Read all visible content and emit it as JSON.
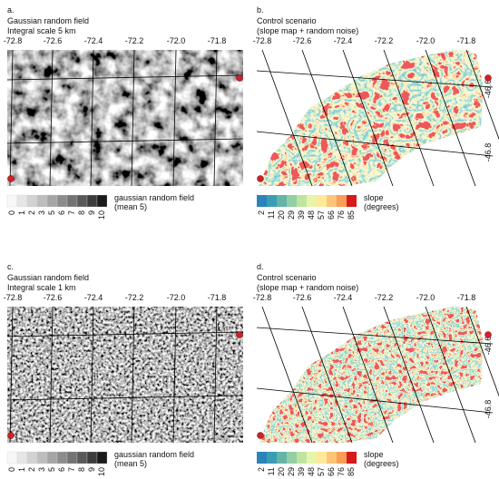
{
  "panels": [
    {
      "label": "a.",
      "title": [
        "Gaussian random field",
        "Integral scale 5 km"
      ],
      "kind": "gray",
      "scale": "coarse",
      "lon_ticks": [
        "-72.8",
        "-72.6",
        "-72.4",
        "-72.2",
        "-72.0",
        "-71.8"
      ],
      "lat_ticks": [],
      "legend": {
        "labels": [
          "0",
          "1",
          "2",
          "3",
          "5",
          "6",
          "7",
          "8",
          "9",
          "10"
        ],
        "title": [
          "gaussian random field",
          "(mean 5)"
        ]
      }
    },
    {
      "label": "b.",
      "title": [
        "Control scenario",
        "(slope map + random noise)"
      ],
      "kind": "slope",
      "scale": "coarse",
      "lon_ticks": [
        "-72.8",
        "-72.6",
        "-72.4",
        "-72.2",
        "-72.0",
        "-71.8"
      ],
      "lat_ticks": [
        "-46.6",
        "-46.8"
      ],
      "legend": {
        "labels": [
          "2",
          "11",
          "20",
          "29",
          "39",
          "48",
          "57",
          "66",
          "76",
          "85"
        ],
        "title": [
          "slope",
          "(degrees)"
        ]
      }
    },
    {
      "label": "c.",
      "title": [
        "Gaussian random field",
        "Integral scale 1 km"
      ],
      "kind": "gray",
      "scale": "fine",
      "lon_ticks": [
        "-72.8",
        "-72.6",
        "-72.4",
        "-72.2",
        "-72.0",
        "-71.8"
      ],
      "lat_ticks": [],
      "legend": {
        "labels": [
          "0",
          "1",
          "2",
          "3",
          "5",
          "6",
          "7",
          "8",
          "9",
          "10"
        ],
        "title": [
          "gaussian random field",
          "(mean 5)"
        ]
      }
    },
    {
      "label": "d.",
      "title": [
        "Control scenario",
        "(slope map + random noise)"
      ],
      "kind": "slope",
      "scale": "fine",
      "lon_ticks": [
        "-72.8",
        "-72.6",
        "-72.4",
        "-72.2",
        "-72.0",
        "-71.8"
      ],
      "lat_ticks": [
        "-46.6",
        "-46.8"
      ],
      "legend": {
        "labels": [
          "2",
          "11",
          "20",
          "29",
          "39",
          "48",
          "57",
          "66",
          "76",
          "85"
        ],
        "title": [
          "slope",
          "(degrees)"
        ]
      }
    }
  ]
}
